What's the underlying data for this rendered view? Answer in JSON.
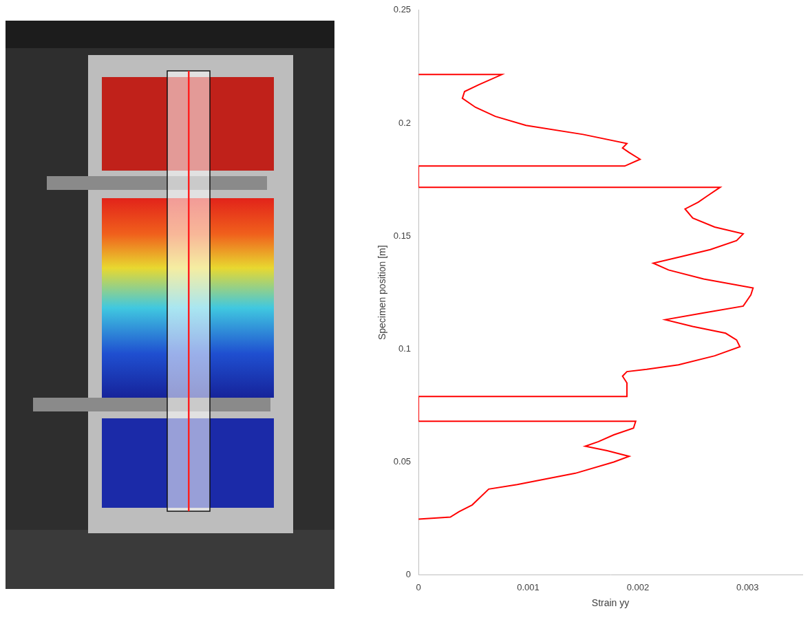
{
  "chart_data": {
    "type": "line",
    "color": "#ff0000",
    "marker": "none",
    "line_style": "solid",
    "grid": false,
    "x_label": "Strain yy",
    "y_label": "Specimen position [m]",
    "xlim": [
      0,
      0.0035
    ],
    "xticks": [
      0,
      0.001,
      0.002,
      0.003
    ],
    "ylim": [
      0,
      0.25
    ],
    "yticks": [
      0,
      0.05,
      0.1,
      0.15,
      0.2,
      0.25
    ],
    "x": [
      0,
      0.00029,
      0.00037,
      0.00049,
      0.00064,
      0.0009,
      0.00143,
      0.00178,
      0.00192,
      0.00172,
      0.00152,
      0.00164,
      0.00178,
      0.00196,
      0.00198,
      0,
      0,
      0.0019,
      0.0019,
      0.00186,
      0.0019,
      0.00208,
      0.00237,
      0.0027,
      0.00293,
      0.0029,
      0.0028,
      0.0025,
      0.00225,
      0.0026,
      0.00296,
      0.00303,
      0.00305,
      0.0026,
      0.00228,
      0.00214,
      0.0024,
      0.00266,
      0.0029,
      0.00296,
      0.0027,
      0.0025,
      0.00243,
      0.00255,
      0.00264,
      0.00275,
      0,
      0,
      0.00188,
      0.00202,
      0.00192,
      0.00186,
      0.0019,
      0.0015,
      0.00098,
      0.0007,
      0.00052,
      0.0004,
      0.00042,
      0.00055,
      0.00076,
      0
    ],
    "values": [
      0.0247,
      0.0256,
      0.028,
      0.031,
      0.038,
      0.04,
      0.045,
      0.05,
      0.0525,
      0.055,
      0.057,
      0.059,
      0.062,
      0.065,
      0.068,
      0.068,
      0.079,
      0.079,
      0.085,
      0.088,
      0.09,
      0.091,
      0.093,
      0.097,
      0.101,
      0.104,
      0.107,
      0.11,
      0.113,
      0.116,
      0.119,
      0.124,
      0.127,
      0.131,
      0.135,
      0.138,
      0.141,
      0.144,
      0.148,
      0.151,
      0.154,
      0.158,
      0.162,
      0.165,
      0.168,
      0.1716,
      0.1716,
      0.181,
      0.181,
      0.184,
      0.187,
      0.189,
      0.191,
      0.195,
      0.199,
      0.203,
      0.207,
      0.211,
      0.214,
      0.217,
      0.2215,
      0.2215
    ]
  }
}
